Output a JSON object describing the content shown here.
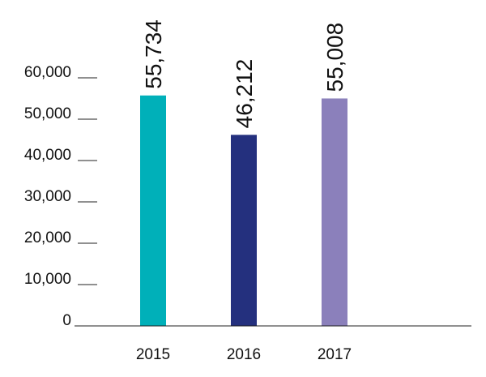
{
  "chart_data": {
    "type": "bar",
    "title": "",
    "xlabel": "",
    "ylabel": "",
    "categories": [
      "2015",
      "2016",
      "2017"
    ],
    "values": [
      55734,
      46212,
      55008
    ],
    "value_labels": [
      "55,734",
      "46,212",
      "55,008"
    ],
    "ylim": [
      0,
      60000
    ],
    "yticks": [
      0,
      10000,
      20000,
      30000,
      40000,
      50000,
      60000
    ],
    "ytick_labels": [
      "0",
      "10,000",
      "20,000",
      "30,000",
      "40,000",
      "50,000",
      "60,000"
    ],
    "grid": false,
    "legend": "none",
    "colors": [
      "#00b0b9",
      "#24307e",
      "#8b80bb"
    ]
  }
}
